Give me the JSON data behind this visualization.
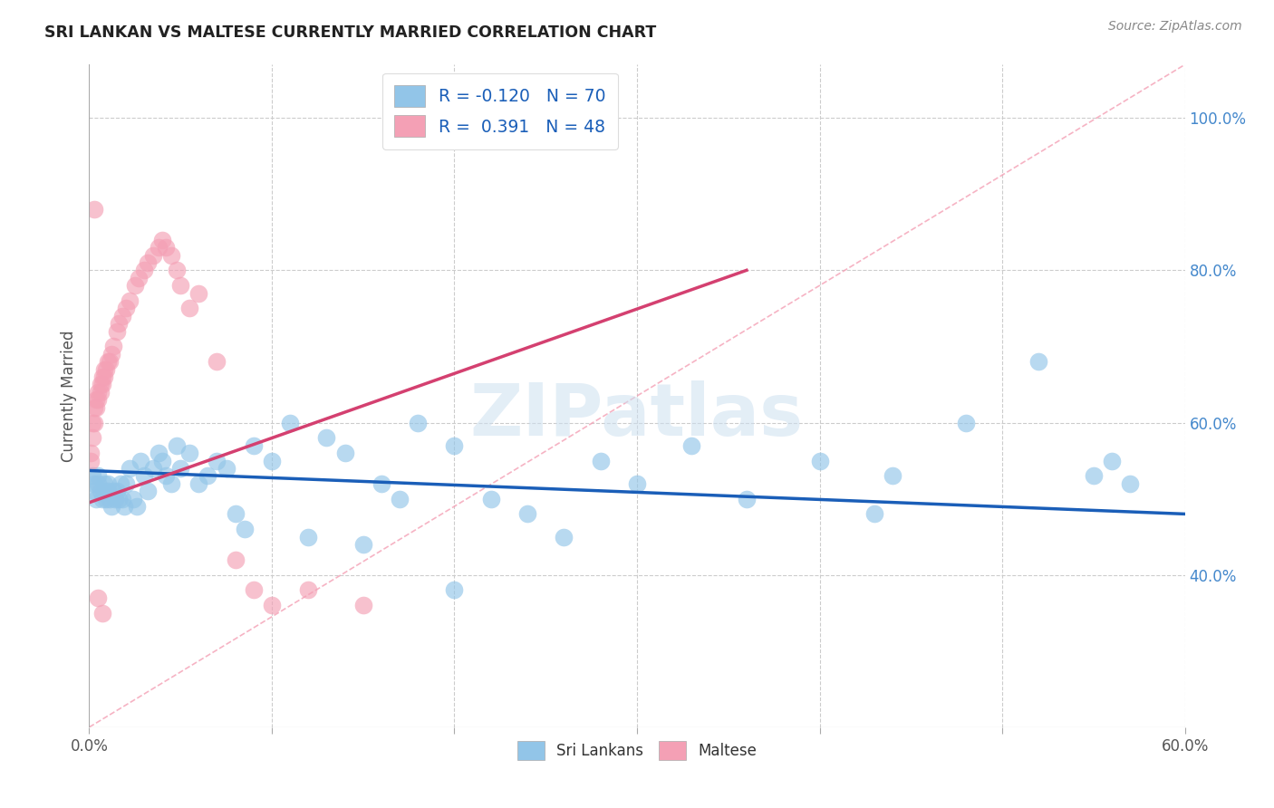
{
  "title": "SRI LANKAN VS MALTESE CURRENTLY MARRIED CORRELATION CHART",
  "source": "Source: ZipAtlas.com",
  "ylabel": "Currently Married",
  "xlim": [
    0.0,
    0.6
  ],
  "ylim": [
    0.2,
    1.07
  ],
  "x_tick_positions": [
    0.0,
    0.1,
    0.2,
    0.3,
    0.4,
    0.5,
    0.6
  ],
  "x_tick_labels_show": [
    "0.0%",
    "",
    "",
    "",
    "",
    "",
    "60.0%"
  ],
  "y_tick_positions_right": [
    1.0,
    0.8,
    0.6,
    0.4
  ],
  "y_tick_labels_right": [
    "100.0%",
    "80.0%",
    "60.0%",
    "40.0%"
  ],
  "grid_color": "#cccccc",
  "background_color": "#ffffff",
  "sri_lankan_color": "#92c5e8",
  "maltese_color": "#f4a0b5",
  "sri_lankan_line_color": "#1a5eb8",
  "maltese_line_color": "#d44070",
  "ref_line_color": "#f4a0b5",
  "legend_sri_r": "-0.120",
  "legend_sri_n": "70",
  "legend_mal_r": "0.391",
  "legend_mal_n": "48",
  "title_color": "#222222",
  "source_color": "#888888",
  "right_tick_color": "#4488cc",
  "watermark": "ZIPatlas",
  "sri_lankan_line_x": [
    0.0,
    0.6
  ],
  "sri_lankan_line_y": [
    0.537,
    0.48
  ],
  "maltese_line_x": [
    0.0,
    0.36
  ],
  "maltese_line_y": [
    0.495,
    0.8
  ],
  "ref_line_x": [
    0.0,
    0.6
  ],
  "ref_line_y": [
    0.2,
    1.07
  ],
  "sri_x": [
    0.002,
    0.003,
    0.003,
    0.004,
    0.005,
    0.005,
    0.006,
    0.007,
    0.008,
    0.008,
    0.009,
    0.01,
    0.01,
    0.011,
    0.012,
    0.013,
    0.014,
    0.015,
    0.016,
    0.017,
    0.018,
    0.019,
    0.02,
    0.022,
    0.024,
    0.026,
    0.028,
    0.03,
    0.032,
    0.035,
    0.038,
    0.04,
    0.042,
    0.045,
    0.048,
    0.05,
    0.055,
    0.06,
    0.065,
    0.07,
    0.075,
    0.08,
    0.085,
    0.09,
    0.1,
    0.11,
    0.12,
    0.13,
    0.14,
    0.15,
    0.16,
    0.17,
    0.18,
    0.2,
    0.22,
    0.24,
    0.26,
    0.28,
    0.3,
    0.33,
    0.36,
    0.4,
    0.44,
    0.48,
    0.52,
    0.55,
    0.56,
    0.57,
    0.43,
    0.2
  ],
  "sri_y": [
    0.53,
    0.51,
    0.52,
    0.5,
    0.53,
    0.52,
    0.51,
    0.5,
    0.52,
    0.51,
    0.5,
    0.52,
    0.51,
    0.5,
    0.49,
    0.51,
    0.5,
    0.51,
    0.5,
    0.52,
    0.5,
    0.49,
    0.52,
    0.54,
    0.5,
    0.49,
    0.55,
    0.53,
    0.51,
    0.54,
    0.56,
    0.55,
    0.53,
    0.52,
    0.57,
    0.54,
    0.56,
    0.52,
    0.53,
    0.55,
    0.54,
    0.48,
    0.46,
    0.57,
    0.55,
    0.6,
    0.45,
    0.58,
    0.56,
    0.44,
    0.52,
    0.5,
    0.6,
    0.57,
    0.5,
    0.48,
    0.45,
    0.55,
    0.52,
    0.57,
    0.5,
    0.55,
    0.53,
    0.6,
    0.68,
    0.53,
    0.55,
    0.52,
    0.48,
    0.38
  ],
  "mal_x": [
    0.001,
    0.001,
    0.002,
    0.002,
    0.003,
    0.003,
    0.004,
    0.004,
    0.005,
    0.005,
    0.006,
    0.006,
    0.007,
    0.007,
    0.008,
    0.008,
    0.009,
    0.01,
    0.011,
    0.012,
    0.013,
    0.015,
    0.016,
    0.018,
    0.02,
    0.022,
    0.025,
    0.027,
    0.03,
    0.032,
    0.035,
    0.038,
    0.04,
    0.042,
    0.045,
    0.048,
    0.05,
    0.055,
    0.06,
    0.07,
    0.08,
    0.09,
    0.1,
    0.12,
    0.15,
    0.003,
    0.005,
    0.007
  ],
  "mal_y": [
    0.55,
    0.56,
    0.58,
    0.6,
    0.6,
    0.62,
    0.62,
    0.63,
    0.63,
    0.64,
    0.64,
    0.65,
    0.65,
    0.66,
    0.66,
    0.67,
    0.67,
    0.68,
    0.68,
    0.69,
    0.7,
    0.72,
    0.73,
    0.74,
    0.75,
    0.76,
    0.78,
    0.79,
    0.8,
    0.81,
    0.82,
    0.83,
    0.84,
    0.83,
    0.82,
    0.8,
    0.78,
    0.75,
    0.77,
    0.68,
    0.42,
    0.38,
    0.36,
    0.38,
    0.36,
    0.88,
    0.37,
    0.35
  ]
}
